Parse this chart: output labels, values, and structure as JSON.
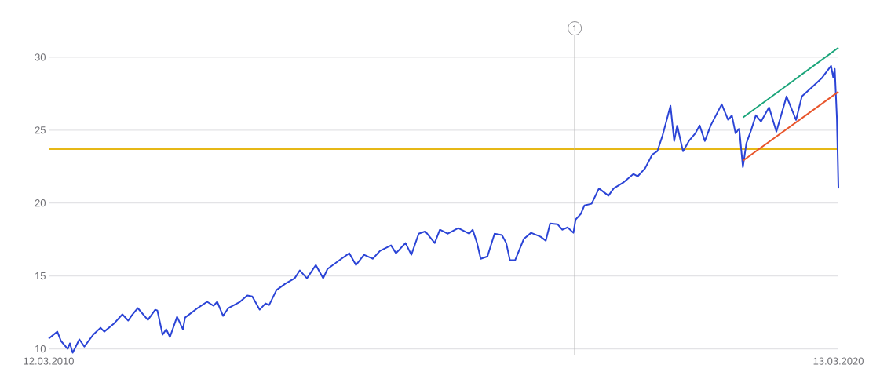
{
  "chart_data": {
    "type": "line",
    "marker": "none",
    "grid": "y",
    "x": [
      "2010-03-12",
      "2010-04-21",
      "2010-05-08",
      "2010-06-08",
      "2010-06-18",
      "2010-07-01",
      "2010-08-01",
      "2010-08-24",
      "2010-10-04",
      "2010-11-07",
      "2010-11-24",
      "2011-01-07",
      "2011-02-16",
      "2011-03-15",
      "2011-04-01",
      "2011-04-28",
      "2011-06-14",
      "2011-07-18",
      "2011-07-28",
      "2011-08-21",
      "2011-09-07",
      "2011-09-24",
      "2011-10-27",
      "2011-11-23",
      "2011-12-03",
      "2012-01-30",
      "2012-03-14",
      "2012-04-13",
      "2012-04-30",
      "2012-05-27",
      "2012-06-20",
      "2012-08-13",
      "2012-09-16",
      "2012-10-09",
      "2012-11-12",
      "2012-12-09",
      "2012-12-26",
      "2013-01-29",
      "2013-03-10",
      "2013-04-23",
      "2013-05-17",
      "2013-06-19",
      "2013-07-30",
      "2013-09-02",
      "2013-09-22",
      "2013-11-25",
      "2014-01-01",
      "2014-02-01",
      "2014-03-10",
      "2014-04-19",
      "2014-05-23",
      "2014-07-13",
      "2014-08-05",
      "2014-09-18",
      "2014-10-15",
      "2014-11-18",
      "2014-12-19",
      "2015-01-31",
      "2015-02-24",
      "2015-04-02",
      "2015-05-20",
      "2015-07-09",
      "2015-07-26",
      "2015-08-15",
      "2015-09-01",
      "2015-10-02",
      "2015-11-04",
      "2015-12-08",
      "2015-12-28",
      "2016-01-14",
      "2016-02-07",
      "2016-03-18",
      "2016-04-21",
      "2016-06-04",
      "2016-06-28",
      "2016-07-18",
      "2016-08-21",
      "2016-09-13",
      "2016-10-07",
      "2016-11-03",
      "2016-11-13",
      "2016-12-07",
      "2016-12-24",
      "2017-01-26",
      "2017-03-01",
      "2017-04-14",
      "2017-05-08",
      "2017-06-21",
      "2017-08-07",
      "2017-08-27",
      "2017-09-30",
      "2017-11-03",
      "2017-11-26",
      "2017-12-20",
      "2018-01-26",
      "2018-02-12",
      "2018-02-26",
      "2018-03-14",
      "2018-03-25",
      "2018-04-21",
      "2018-05-21",
      "2018-06-10",
      "2018-07-04",
      "2018-07-31",
      "2018-09-20",
      "2018-10-20",
      "2018-11-06",
      "2018-11-23",
      "2018-12-10",
      "2018-12-27",
      "2019-01-12",
      "2019-02-02",
      "2019-02-25",
      "2019-03-21",
      "2019-04-27",
      "2019-05-31",
      "2019-07-17",
      "2019-08-30",
      "2019-09-26",
      "2019-11-16",
      "2019-12-26",
      "2020-02-08",
      "2020-02-18",
      "2020-02-25",
      "2020-03-06",
      "2020-03-13"
    ],
    "series": [
      {
        "color": "#2b44d6",
        "values": [
          10.7,
          11.18,
          10.54,
          10.0,
          10.38,
          9.73,
          10.65,
          10.16,
          10.97,
          11.45,
          11.18,
          11.72,
          12.37,
          11.94,
          12.31,
          12.8,
          11.99,
          12.69,
          12.63,
          10.97,
          11.34,
          10.81,
          12.2,
          11.34,
          12.15,
          12.8,
          13.23,
          12.96,
          13.23,
          12.26,
          12.8,
          13.23,
          13.66,
          13.6,
          12.69,
          13.12,
          13.01,
          14.03,
          14.46,
          14.84,
          15.38,
          14.84,
          15.75,
          14.84,
          15.48,
          16.18,
          16.56,
          15.75,
          16.45,
          16.18,
          16.72,
          17.1,
          16.56,
          17.26,
          16.45,
          17.9,
          18.06,
          17.26,
          18.17,
          17.9,
          18.28,
          17.9,
          18.17,
          17.26,
          16.18,
          16.34,
          17.9,
          17.8,
          17.26,
          16.08,
          16.08,
          17.53,
          17.96,
          17.69,
          17.42,
          18.6,
          18.55,
          18.17,
          18.33,
          17.96,
          18.87,
          19.25,
          19.84,
          19.95,
          21.0,
          20.5,
          21.0,
          21.4,
          21.99,
          21.83,
          22.37,
          23.33,
          23.55,
          24.62,
          26.67,
          24.25,
          25.32,
          24.25,
          23.55,
          24.25,
          24.78,
          25.32,
          24.25,
          25.32,
          26.77,
          25.7,
          26.02,
          24.78,
          25.11,
          22.47,
          24.09,
          24.95,
          26.02,
          25.59,
          26.56,
          24.89,
          27.31,
          25.7,
          27.31,
          28.0,
          28.55,
          29.41,
          28.6,
          29.2,
          25.8,
          21.0
        ]
      },
      {
        "type": "line",
        "x": [
          "2018-12-27",
          "2020-03-13"
        ],
        "color": "#1aa57a",
        "values": [
          25.86,
          30.65
        ]
      },
      {
        "type": "line",
        "x": [
          "2018-12-27",
          "2020-03-13"
        ],
        "color": "#e8542a",
        "values": [
          22.9,
          27.63
        ]
      }
    ],
    "xlim": [
      "2010-03-12",
      "2020-03-13"
    ],
    "xticks": [
      {
        "value": "2010-03-12",
        "label": "12.03.2010"
      },
      {
        "value": "2020-03-13",
        "label": "13.03.2020"
      }
    ],
    "ylim": [
      9.6,
      31.5
    ],
    "yticks": [
      10,
      15,
      20,
      25,
      30
    ],
    "ref_lines": [
      {
        "axis": "y",
        "value": 23.7,
        "color": "#e6b817"
      },
      {
        "axis": "x",
        "value": "2016-11-09",
        "label": "1",
        "color": "#b4b4b4"
      }
    ]
  }
}
